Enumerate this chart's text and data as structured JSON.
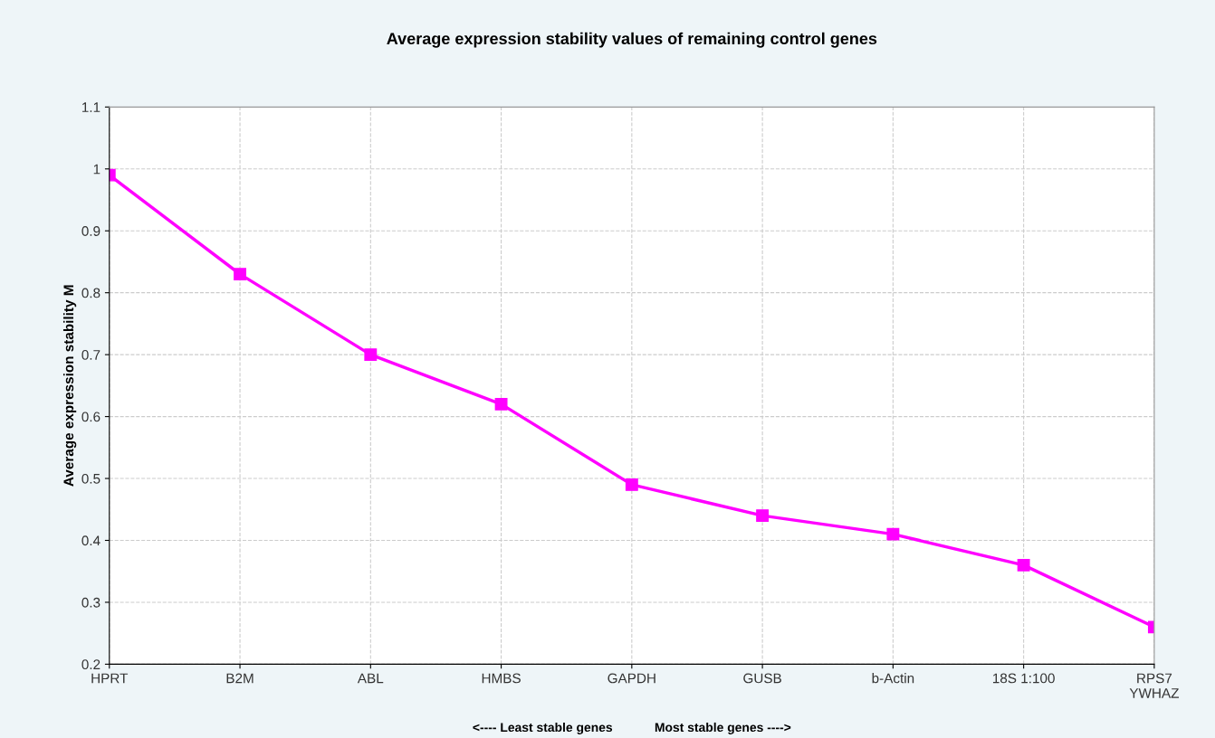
{
  "chart_data": {
    "type": "line",
    "title": "Average expression stability values of remaining control genes",
    "ylabel": "Average expression stability M",
    "categories": [
      "HPRT",
      "B2M",
      "ABL",
      "HMBS",
      "GAPDH",
      "GUSB",
      "b-Actin",
      "18S 1:100",
      "RPS7\nYWHAZ"
    ],
    "series": [
      {
        "color": "#ff00ff",
        "values": [
          0.99,
          0.83,
          0.7,
          0.62,
          0.49,
          0.44,
          0.41,
          0.36,
          0.26
        ]
      }
    ],
    "ylim": [
      0.2,
      1.1
    ],
    "yticks": [
      0.2,
      0.3,
      0.4,
      0.5,
      0.6,
      0.7,
      0.8,
      0.9,
      1,
      1.1
    ],
    "grid": true,
    "marker": "square",
    "line_style": "solid",
    "annotations": [
      "<---- Least stable genes            Most stable genes ---->"
    ]
  }
}
